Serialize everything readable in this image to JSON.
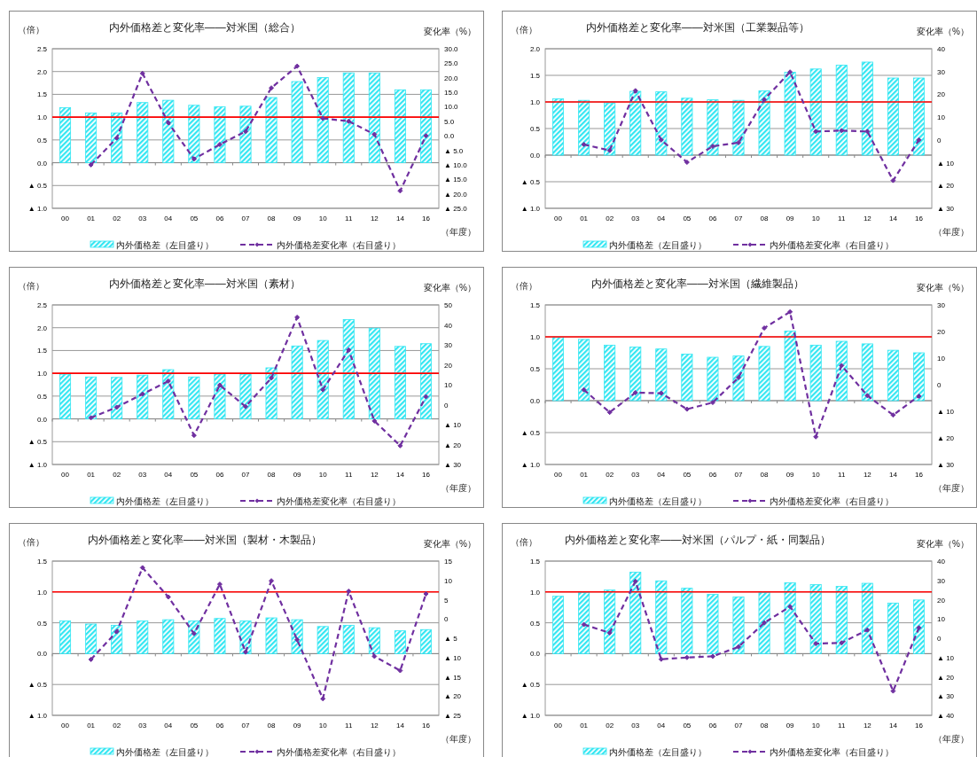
{
  "chart_data": [
    {
      "type": "bar",
      "title": "内外価格差と変化率――対米国（総合）",
      "ylabel": "（倍）",
      "y2label": "変化率（%）",
      "xlabel": "（年度）",
      "categories": [
        "00",
        "01",
        "02",
        "03",
        "04",
        "05",
        "06",
        "07",
        "08",
        "09",
        "10",
        "11",
        "12",
        "14",
        "16"
      ],
      "series": [
        {
          "name": "内外価格差（左目盛り）",
          "color": "#33e6f2",
          "values": [
            1.21,
            1.09,
            1.09,
            1.32,
            1.37,
            1.26,
            1.23,
            1.24,
            1.43,
            1.78,
            1.87,
            1.97,
            1.97,
            1.6,
            1.6
          ]
        },
        {
          "name": "内外価格差変化率（右目盛り）",
          "type": "line",
          "axis": "y2",
          "color": "#7030a0",
          "marker": "diamond",
          "line_style": "dashed",
          "values": [
            null,
            -10,
            -0.8,
            21.5,
            4.5,
            -8,
            -3,
            1.5,
            16.5,
            24,
            6,
            5,
            0.5,
            -19,
            0
          ]
        }
      ],
      "ylim": [
        -1,
        2.5
      ],
      "yticks": [
        {
          "value": -1,
          "label": "▲ 1.0"
        },
        {
          "value": -0.5,
          "label": "▲ 0.5"
        },
        {
          "value": 0,
          "label": "0.0"
        },
        {
          "value": 0.5,
          "label": "0.5"
        },
        {
          "value": 1,
          "label": "1.0"
        },
        {
          "value": 1.5,
          "label": "1.5"
        },
        {
          "value": 2,
          "label": "2.0"
        },
        {
          "value": 2.5,
          "label": "2.5"
        }
      ],
      "y2lim": [
        -25,
        30
      ],
      "y2ticks": [
        {
          "value": -25,
          "label": "▲ 25.0"
        },
        {
          "value": -20,
          "label": "▲ 20.0"
        },
        {
          "value": -15,
          "label": "▲ 15.0"
        },
        {
          "value": -10,
          "label": "▲ 10.0"
        },
        {
          "value": -5,
          "label": "▲ 5.0"
        },
        {
          "value": 0,
          "label": "0.0"
        },
        {
          "value": 5,
          "label": "5.0"
        },
        {
          "value": 10,
          "label": "10.0"
        },
        {
          "value": 15,
          "label": "15.0"
        },
        {
          "value": 20,
          "label": "20.0"
        },
        {
          "value": 25,
          "label": "25.0"
        },
        {
          "value": 30,
          "label": "30.0"
        }
      ],
      "ref_lines": [
        {
          "axis": "y",
          "value": 1,
          "color": "#ff0000"
        }
      ],
      "grid": "y",
      "legend": "bottom"
    },
    {
      "type": "bar",
      "title": "内外価格差と変化率――対米国（工業製品等）",
      "ylabel": "（倍）",
      "y2label": "変化率（%）",
      "xlabel": "（年度）",
      "categories": [
        "00",
        "01",
        "02",
        "03",
        "04",
        "05",
        "06",
        "07",
        "08",
        "09",
        "10",
        "11",
        "12",
        "14",
        "16"
      ],
      "series": [
        {
          "name": "内外価格差（左目盛り）",
          "color": "#33e6f2",
          "values": [
            1.06,
            1.03,
            0.98,
            1.2,
            1.19,
            1.07,
            1.04,
            1.03,
            1.21,
            1.56,
            1.62,
            1.69,
            1.75,
            1.45,
            1.45
          ]
        },
        {
          "name": "内外価格差変化率（右目盛り）",
          "type": "line",
          "axis": "y2",
          "color": "#7030a0",
          "marker": "diamond",
          "line_style": "dashed",
          "values": [
            null,
            -2,
            -4.6,
            21.6,
            0,
            -9.8,
            -2.8,
            -1.2,
            17.7,
            29.8,
            3.7,
            4.1,
            3.7,
            -17.8,
            0
          ]
        }
      ],
      "ylim": [
        -1,
        2
      ],
      "yticks": [
        {
          "value": -1,
          "label": "▲ 1.0"
        },
        {
          "value": -0.5,
          "label": "▲ 0.5"
        },
        {
          "value": 0,
          "label": "0.0"
        },
        {
          "value": 0.5,
          "label": "0.5"
        },
        {
          "value": 1,
          "label": "1.0"
        },
        {
          "value": 1.5,
          "label": "1.5"
        },
        {
          "value": 2,
          "label": "2.0"
        }
      ],
      "y2lim": [
        -30,
        40
      ],
      "y2ticks": [
        {
          "value": -30,
          "label": "▲ 30"
        },
        {
          "value": -20,
          "label": "▲ 20"
        },
        {
          "value": -10,
          "label": "▲ 10"
        },
        0,
        10,
        20,
        30,
        40
      ],
      "ref_lines": [
        {
          "axis": "y",
          "value": 1,
          "color": "#ff0000"
        }
      ],
      "grid": "y",
      "legend": "bottom"
    },
    {
      "type": "bar",
      "title": "内外価格差と変化率――対米国（素材）",
      "ylabel": "（倍）",
      "y2label": "変化率（%）",
      "xlabel": "（年度）",
      "categories": [
        "00",
        "01",
        "02",
        "03",
        "04",
        "05",
        "06",
        "07",
        "08",
        "09",
        "10",
        "11",
        "12",
        "14",
        "16"
      ],
      "series": [
        {
          "name": "内外価格差（左目盛り）",
          "color": "#33e6f2",
          "values": [
            0.98,
            0.92,
            0.91,
            0.96,
            1.08,
            0.92,
            0.98,
            0.98,
            1.12,
            1.6,
            1.72,
            2.18,
            1.99,
            1.59,
            1.65
          ]
        },
        {
          "name": "内外価格差変化率（右目盛り）",
          "type": "line",
          "axis": "y2",
          "color": "#7030a0",
          "marker": "diamond",
          "line_style": "dashed",
          "values": [
            null,
            -6.6,
            -1.3,
            5.3,
            11.8,
            -15.4,
            9.8,
            -1,
            13.4,
            43.8,
            7.5,
            27.4,
            -8.2,
            -20.6,
            4
          ]
        }
      ],
      "ylim": [
        -1,
        2.5
      ],
      "yticks": [
        {
          "value": -1,
          "label": "▲ 1.0"
        },
        {
          "value": -0.5,
          "label": "▲ 0.5"
        },
        {
          "value": 0,
          "label": "0.0"
        },
        {
          "value": 0.5,
          "label": "0.5"
        },
        {
          "value": 1,
          "label": "1.0"
        },
        {
          "value": 1.5,
          "label": "1.5"
        },
        {
          "value": 2,
          "label": "2.0"
        },
        {
          "value": 2.5,
          "label": "2.5"
        }
      ],
      "y2lim": [
        -30,
        50
      ],
      "y2ticks": [
        {
          "value": -30,
          "label": "▲ 30"
        },
        {
          "value": -20,
          "label": "▲ 20"
        },
        {
          "value": -10,
          "label": "▲ 10"
        },
        0,
        10,
        20,
        30,
        40,
        50
      ],
      "ref_lines": [
        {
          "axis": "y",
          "value": 1,
          "color": "#ff0000"
        }
      ],
      "grid": "y",
      "legend": "bottom"
    },
    {
      "type": "bar",
      "title": "内外価格差と変化率――対米国（繊維製品）",
      "ylabel": "（倍）",
      "y2label": "変化率（%）",
      "xlabel": "（年度）",
      "categories": [
        "00",
        "01",
        "02",
        "03",
        "04",
        "05",
        "06",
        "07",
        "08",
        "09",
        "10",
        "11",
        "12",
        "14",
        "16"
      ],
      "series": [
        {
          "name": "内外価格差（左目盛り）",
          "color": "#33e6f2",
          "values": [
            0.99,
            0.96,
            0.87,
            0.84,
            0.81,
            0.73,
            0.68,
            0.7,
            0.85,
            1.09,
            0.87,
            0.93,
            0.89,
            0.79,
            0.75
          ]
        },
        {
          "name": "内外価格差変化率（右目盛り）",
          "type": "line",
          "axis": "y2",
          "color": "#7030a0",
          "marker": "diamond",
          "line_style": "dashed",
          "values": [
            null,
            -1.9,
            -10.4,
            -3,
            -3.2,
            -9.2,
            -6.7,
            2.7,
            21.3,
            27.4,
            -19.6,
            7.2,
            -4.1,
            -11.4,
            -4.3
          ]
        }
      ],
      "ylim": [
        -1,
        1.5
      ],
      "yticks": [
        {
          "value": -1,
          "label": "▲ 1.0"
        },
        {
          "value": -0.5,
          "label": "▲ 0.5"
        },
        {
          "value": 0,
          "label": "0.0"
        },
        {
          "value": 0.5,
          "label": "0.5"
        },
        {
          "value": 1,
          "label": "1.0"
        },
        {
          "value": 1.5,
          "label": "1.5"
        }
      ],
      "y2lim": [
        -30,
        30
      ],
      "y2ticks": [
        {
          "value": -30,
          "label": "▲ 30"
        },
        {
          "value": -20,
          "label": "▲ 20"
        },
        {
          "value": -10,
          "label": "▲ 10"
        },
        0,
        10,
        20,
        30
      ],
      "ref_lines": [
        {
          "axis": "y",
          "value": 1,
          "color": "#ff0000"
        }
      ],
      "grid": "y",
      "legend": "bottom"
    },
    {
      "type": "bar",
      "title": "内外価格差と変化率――対米国（製材・木製品）",
      "ylabel": "（倍）",
      "y2label": "変化率（%）",
      "xlabel": "（年度）",
      "categories": [
        "00",
        "01",
        "02",
        "03",
        "04",
        "05",
        "06",
        "07",
        "08",
        "09",
        "10",
        "11",
        "12",
        "14",
        "16"
      ],
      "series": [
        {
          "name": "内外価格差（左目盛り）",
          "color": "#33e6f2",
          "values": [
            0.53,
            0.48,
            0.46,
            0.53,
            0.55,
            0.53,
            0.57,
            0.53,
            0.58,
            0.55,
            0.44,
            0.46,
            0.42,
            0.37,
            0.39
          ]
        },
        {
          "name": "内外価格差変化率（右目盛り）",
          "type": "line",
          "axis": "y2",
          "color": "#7030a0",
          "marker": "diamond",
          "line_style": "dashed",
          "values": [
            null,
            -10.5,
            -3.3,
            13.3,
            5.7,
            -3.8,
            9,
            -8.6,
            9.9,
            -5.4,
            -20.7,
            7.2,
            -9.7,
            -13.4,
            6.5
          ]
        }
      ],
      "ylim": [
        -1,
        1.5
      ],
      "yticks": [
        {
          "value": -1,
          "label": "▲ 1.0"
        },
        {
          "value": -0.5,
          "label": "▲ 0.5"
        },
        {
          "value": 0,
          "label": "0.0"
        },
        {
          "value": 0.5,
          "label": "0.5"
        },
        {
          "value": 1,
          "label": "1.0"
        },
        {
          "value": 1.5,
          "label": "1.5"
        }
      ],
      "y2lim": [
        -25,
        15
      ],
      "y2ticks": [
        {
          "value": -25,
          "label": "▲ 25"
        },
        {
          "value": -20,
          "label": "▲ 20"
        },
        {
          "value": -15,
          "label": "▲ 15"
        },
        {
          "value": -10,
          "label": "▲ 10"
        },
        {
          "value": -5,
          "label": "▲ 5"
        },
        0,
        5,
        10,
        15
      ],
      "ref_lines": [
        {
          "axis": "y",
          "value": 1,
          "color": "#ff0000"
        }
      ],
      "grid": "y",
      "legend": "bottom"
    },
    {
      "type": "bar",
      "title": "内外価格差と変化率――対米国（パルプ・紙・同製品）",
      "ylabel": "（倍）",
      "y2label": "変化率（%）",
      "xlabel": "（年度）",
      "categories": [
        "00",
        "01",
        "02",
        "03",
        "04",
        "05",
        "06",
        "07",
        "08",
        "09",
        "10",
        "11",
        "12",
        "14",
        "16"
      ],
      "series": [
        {
          "name": "内外価格差（左目盛り）",
          "color": "#33e6f2",
          "values": [
            0.93,
            0.99,
            1.03,
            1.32,
            1.18,
            1.06,
            0.96,
            0.92,
            0.99,
            1.15,
            1.12,
            1.09,
            1.14,
            0.82,
            0.87
          ]
        },
        {
          "name": "内外価格差変化率（右目盛り）",
          "type": "line",
          "axis": "y2",
          "color": "#7030a0",
          "marker": "diamond",
          "line_style": "dashed",
          "values": [
            null,
            7.1,
            2.8,
            29.5,
            -10.9,
            -10,
            -9.4,
            -4.5,
            8,
            16.4,
            -2.8,
            -2.4,
            4.3,
            -27.4,
            5.4
          ]
        }
      ],
      "ylim": [
        -1,
        1.5
      ],
      "yticks": [
        {
          "value": -1,
          "label": "▲ 1.0"
        },
        {
          "value": -0.5,
          "label": "▲ 0.5"
        },
        {
          "value": 0,
          "label": "0.0"
        },
        {
          "value": 0.5,
          "label": "0.5"
        },
        {
          "value": 1,
          "label": "1.0"
        },
        {
          "value": 1.5,
          "label": "1.5"
        }
      ],
      "y2lim": [
        -40,
        40
      ],
      "y2ticks": [
        {
          "value": -40,
          "label": "▲ 40"
        },
        {
          "value": -30,
          "label": "▲ 30"
        },
        {
          "value": -20,
          "label": "▲ 20"
        },
        {
          "value": -10,
          "label": "▲ 10"
        },
        0,
        10,
        20,
        30,
        40
      ],
      "ref_lines": [
        {
          "axis": "y",
          "value": 1,
          "color": "#ff0000"
        }
      ],
      "grid": "y",
      "legend": "bottom"
    }
  ]
}
